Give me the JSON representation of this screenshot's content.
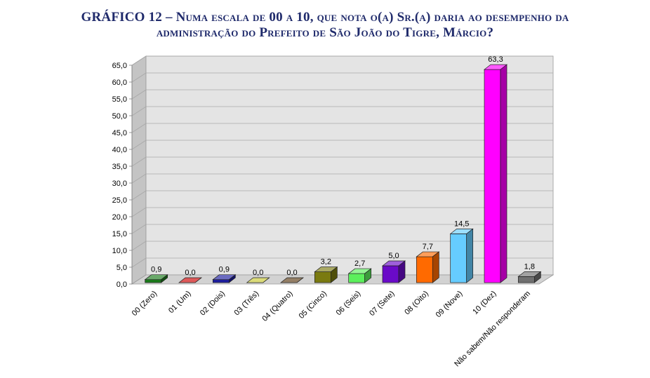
{
  "title_line1": "GRÁFICO 12 – Numa escala de 00 a 10, que nota o(a) Sr.(a) daria ao desempenho da",
  "title_line2": "administração do Prefeito de São João do Tigre, Márcio?",
  "chart_data": {
    "type": "bar",
    "ylim": [
      0,
      65
    ],
    "ytick_step": 5,
    "ytick_labels": [
      "0,0",
      "5,0",
      "10,0",
      "15,0",
      "20,0",
      "25,0",
      "30,0",
      "35,0",
      "40,0",
      "45,0",
      "50,0",
      "55,0",
      "60,0",
      "65,0"
    ],
    "grid": true,
    "categories": [
      "00 (Zero)",
      "01 (Um)",
      "02 (Dois)",
      "03 (Três)",
      "04 (Quatro)",
      "05 (Cinco)",
      "06 (Seis)",
      "07 (Sete)",
      "08 (Oito)",
      "09 (Nove)",
      "10 (Dez)",
      "Não sabem/Não responderam"
    ],
    "values": [
      0.9,
      0.0,
      0.9,
      0.0,
      0.0,
      3.2,
      2.7,
      5.0,
      7.7,
      14.5,
      63.3,
      1.8
    ],
    "value_labels": [
      "0,9",
      "0,0",
      "0,9",
      "0,0",
      "0,0",
      "3,2",
      "2,7",
      "5,0",
      "7,7",
      "14,5",
      "63,3",
      "1,8"
    ],
    "colors": [
      "#1a7a1a",
      "#cc0000",
      "#1c1c9e",
      "#c8c832",
      "#5a3a14",
      "#7a7a10",
      "#5cf05c",
      "#6a0ac8",
      "#ff6a00",
      "#66ccff",
      "#ff00ff",
      "#707070"
    ]
  }
}
